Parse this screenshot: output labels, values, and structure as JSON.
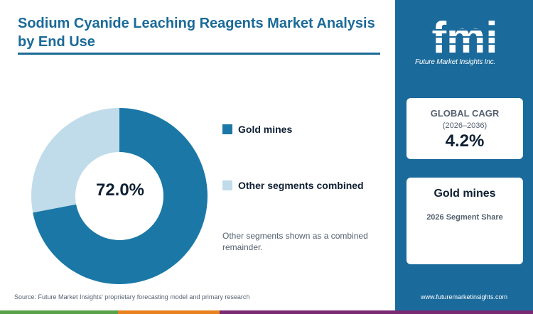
{
  "title": "Sodium Cyanide Leaching Reagents Market Analysis by End Use",
  "center_label": "72.0%",
  "legend": [
    {
      "label": "Gold mines",
      "color": "#1b78a6"
    },
    {
      "label": "Other segments combined",
      "color": "#c0dcea"
    }
  ],
  "note": "Other segments shown as a combined remainder.",
  "source": "Source: Future Market Insights' proprietary forecasting model and primary research",
  "brand": {
    "logo_text": "fmi",
    "logo_sub": "Future Market Insights Inc.",
    "url": "www.futuremarketinsights.com"
  },
  "cards": {
    "cagr_label": "GLOBAL CAGR",
    "cagr_period": "(2026–2036)",
    "cagr_value": "4.2%",
    "segment_name": "Gold mines",
    "segment_caption": "2026 Segment Share"
  },
  "colors": {
    "primary": "#1b6a98",
    "sidebar": "#1a6a9b",
    "bottom_bar": [
      "#5aa24a",
      "#e8811f",
      "#7a2a73"
    ]
  },
  "chart_data": {
    "type": "pie",
    "donut": true,
    "categories": [
      "Gold mines",
      "Other segments combined"
    ],
    "values": [
      72.0,
      28.0
    ],
    "colors": [
      "#1b78a6",
      "#c0dcea"
    ],
    "center_label": "72.0%"
  }
}
